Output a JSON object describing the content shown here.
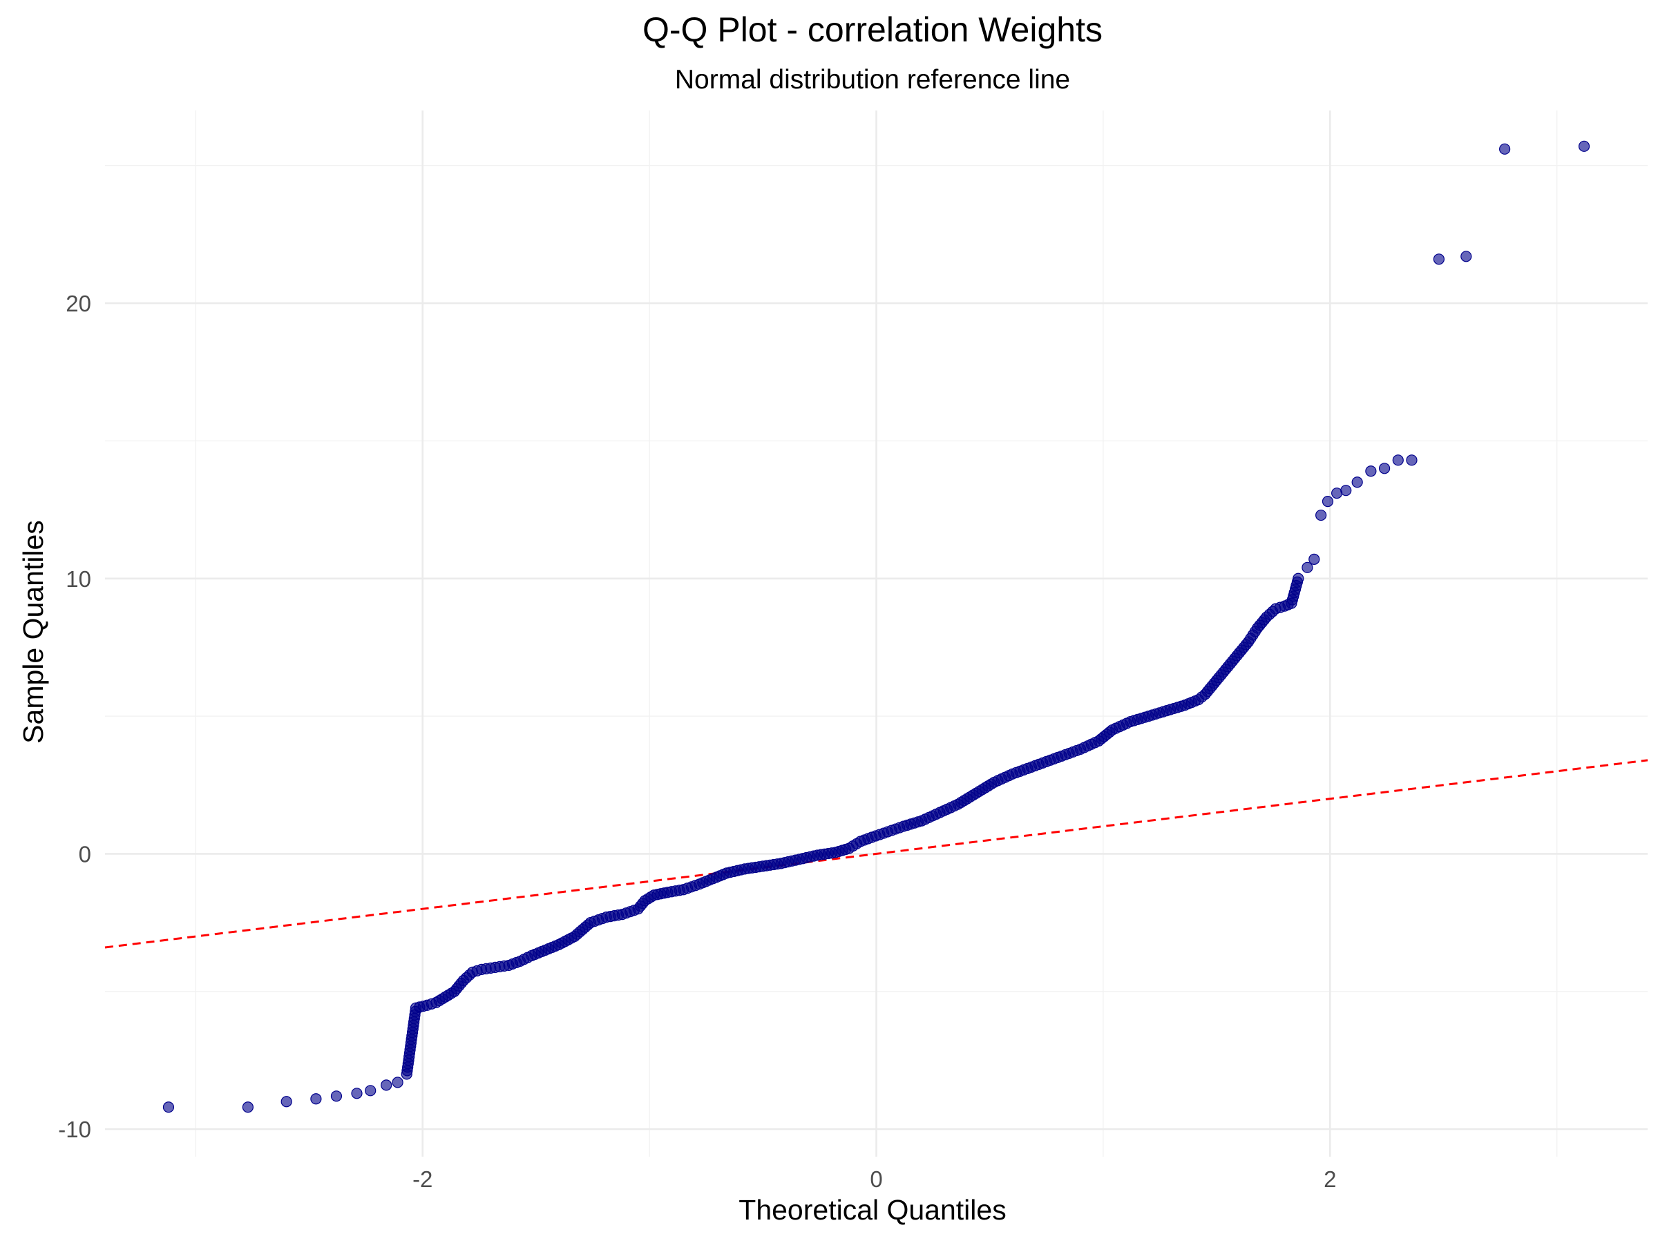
{
  "chart_data": {
    "type": "scatter",
    "title": "Q-Q Plot - correlation Weights",
    "subtitle": "Normal distribution reference line",
    "xlabel": "Theoretical Quantiles",
    "ylabel": "Sample Quantiles",
    "xlim": [
      -3.4,
      3.4
    ],
    "ylim": [
      -11.0,
      27.0
    ],
    "x_ticks": [
      -2,
      0,
      2
    ],
    "x_tick_labels": [
      "-2",
      "0",
      "2"
    ],
    "y_ticks": [
      -10,
      0,
      10,
      20
    ],
    "y_tick_labels": [
      "-10",
      "0",
      "10",
      "20"
    ],
    "grid": true,
    "point_color": "#00008b",
    "reference_line": {
      "intercept": 0,
      "slope": 1,
      "color": "#ff0000",
      "style": "dashed"
    },
    "series": [
      {
        "x": [
          -3.12,
          -2.77,
          -2.6,
          -2.47,
          -2.38,
          -2.29,
          -2.23,
          -2.16,
          -2.11,
          -2.07,
          -2.03,
          -1.98,
          -1.94,
          -1.9,
          -1.86,
          -1.82,
          -1.78,
          -1.74,
          -1.7,
          -1.66,
          -1.62,
          -1.57,
          -1.52,
          -1.46,
          -1.4,
          -1.33,
          -1.26,
          -1.19,
          -1.12,
          -1.05,
          -1.02,
          -0.98,
          -0.92,
          -0.85,
          -0.78,
          -0.72,
          -0.66,
          -0.58,
          -0.5,
          -0.42,
          -0.34,
          -0.26,
          -0.18,
          -0.12,
          -0.07,
          -0.02,
          0.05,
          0.12,
          0.2,
          0.28,
          0.36,
          0.44,
          0.52,
          0.6,
          0.7,
          0.8,
          0.9,
          0.98,
          1.04,
          1.12,
          1.2,
          1.28,
          1.36,
          1.42,
          1.45,
          1.48,
          1.52,
          1.56,
          1.6,
          1.64,
          1.68,
          1.72,
          1.76,
          1.8,
          1.83,
          1.86,
          1.9,
          1.93,
          1.96,
          1.99,
          2.03,
          2.07,
          2.12,
          2.18,
          2.24,
          2.3,
          2.36,
          2.48,
          2.6,
          2.77,
          3.12
        ],
        "y": [
          -9.2,
          -9.2,
          -9.0,
          -8.9,
          -8.8,
          -8.7,
          -8.6,
          -8.4,
          -8.3,
          -8.0,
          -5.6,
          -5.5,
          -5.4,
          -5.2,
          -5.0,
          -4.6,
          -4.3,
          -4.2,
          -4.15,
          -4.1,
          -4.05,
          -3.9,
          -3.7,
          -3.5,
          -3.3,
          -3.0,
          -2.5,
          -2.3,
          -2.2,
          -2.0,
          -1.7,
          -1.5,
          -1.4,
          -1.3,
          -1.1,
          -0.9,
          -0.7,
          -0.55,
          -0.45,
          -0.35,
          -0.2,
          -0.05,
          0.05,
          0.2,
          0.45,
          0.6,
          0.8,
          1.0,
          1.2,
          1.5,
          1.8,
          2.2,
          2.6,
          2.9,
          3.2,
          3.5,
          3.8,
          4.1,
          4.5,
          4.8,
          5.0,
          5.2,
          5.4,
          5.6,
          5.8,
          6.1,
          6.5,
          6.9,
          7.3,
          7.7,
          8.2,
          8.6,
          8.9,
          9.0,
          9.1,
          10.0,
          10.4,
          10.7,
          12.3,
          12.8,
          13.1,
          13.2,
          13.5,
          13.9,
          14.0,
          14.3,
          14.3,
          21.6,
          21.7,
          25.6,
          25.7
        ]
      }
    ]
  }
}
